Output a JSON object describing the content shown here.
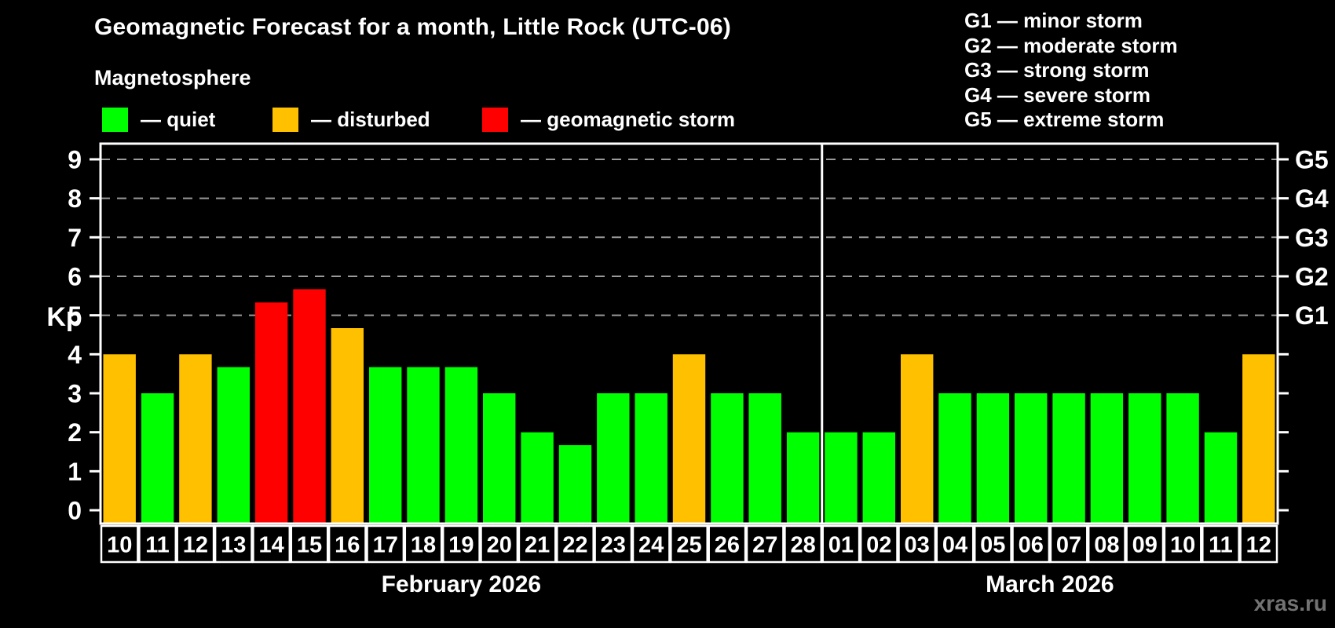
{
  "header": {
    "title": "Geomagnetic Forecast for a month, Little Rock (UTC-06)",
    "subtitle": "Magnetosphere"
  },
  "kp_legend": [
    {
      "name": "quiet",
      "label": "— quiet",
      "color": "#00ff00"
    },
    {
      "name": "disturbed",
      "label": "— disturbed",
      "color": "#ffc000"
    },
    {
      "name": "storm",
      "label": "— geomagnetic storm",
      "color": "#ff0000"
    }
  ],
  "g_legend": [
    "G1 — minor storm",
    "G2 — moderate storm",
    "G3 — strong storm",
    "G4 — severe storm",
    "G5 — extreme storm"
  ],
  "months": [
    {
      "label": "February 2026",
      "days": 19
    },
    {
      "label": "March 2026",
      "days": 12
    }
  ],
  "watermark": "xras.ru",
  "chart_data": {
    "type": "bar",
    "title": "Geomagnetic Forecast for a month, Little Rock (UTC-06)",
    "xlabel": "",
    "ylabel": "Kp",
    "ylim": [
      0,
      9
    ],
    "yticks": [
      0,
      1,
      2,
      3,
      4,
      5,
      6,
      7,
      8,
      9
    ],
    "grid": "dashed horizontal lines at Kp 5-9 only",
    "legend_position": "top",
    "right_axis": [
      {
        "kp": 5,
        "label": "G1"
      },
      {
        "kp": 6,
        "label": "G2"
      },
      {
        "kp": 7,
        "label": "G3"
      },
      {
        "kp": 8,
        "label": "G4"
      },
      {
        "kp": 9,
        "label": "G5"
      }
    ],
    "categories": [
      "10",
      "11",
      "12",
      "13",
      "14",
      "15",
      "16",
      "17",
      "18",
      "19",
      "20",
      "21",
      "22",
      "23",
      "24",
      "25",
      "26",
      "27",
      "28",
      "01",
      "02",
      "03",
      "04",
      "05",
      "06",
      "07",
      "08",
      "09",
      "10",
      "11",
      "12"
    ],
    "values": [
      4,
      3,
      4,
      3.67,
      5.33,
      5.67,
      4.67,
      3.67,
      3.67,
      3.67,
      3,
      2,
      1.67,
      3,
      3,
      4,
      3,
      3,
      2,
      2,
      2,
      4,
      3,
      3,
      3,
      3,
      3,
      3,
      3,
      2,
      4
    ],
    "statuses": [
      "disturbed",
      "quiet",
      "disturbed",
      "quiet",
      "storm",
      "storm",
      "disturbed",
      "quiet",
      "quiet",
      "quiet",
      "quiet",
      "quiet",
      "quiet",
      "quiet",
      "quiet",
      "disturbed",
      "quiet",
      "quiet",
      "quiet",
      "quiet",
      "quiet",
      "disturbed",
      "quiet",
      "quiet",
      "quiet",
      "quiet",
      "quiet",
      "quiet",
      "quiet",
      "quiet",
      "disturbed"
    ],
    "status_colors": {
      "quiet": "#00ff00",
      "disturbed": "#ffc000",
      "storm": "#ff0000"
    },
    "colors": {
      "axis": "#ffffff",
      "gridline": "#9a9a9a",
      "background": "#000000",
      "watermark": "#737373"
    }
  }
}
